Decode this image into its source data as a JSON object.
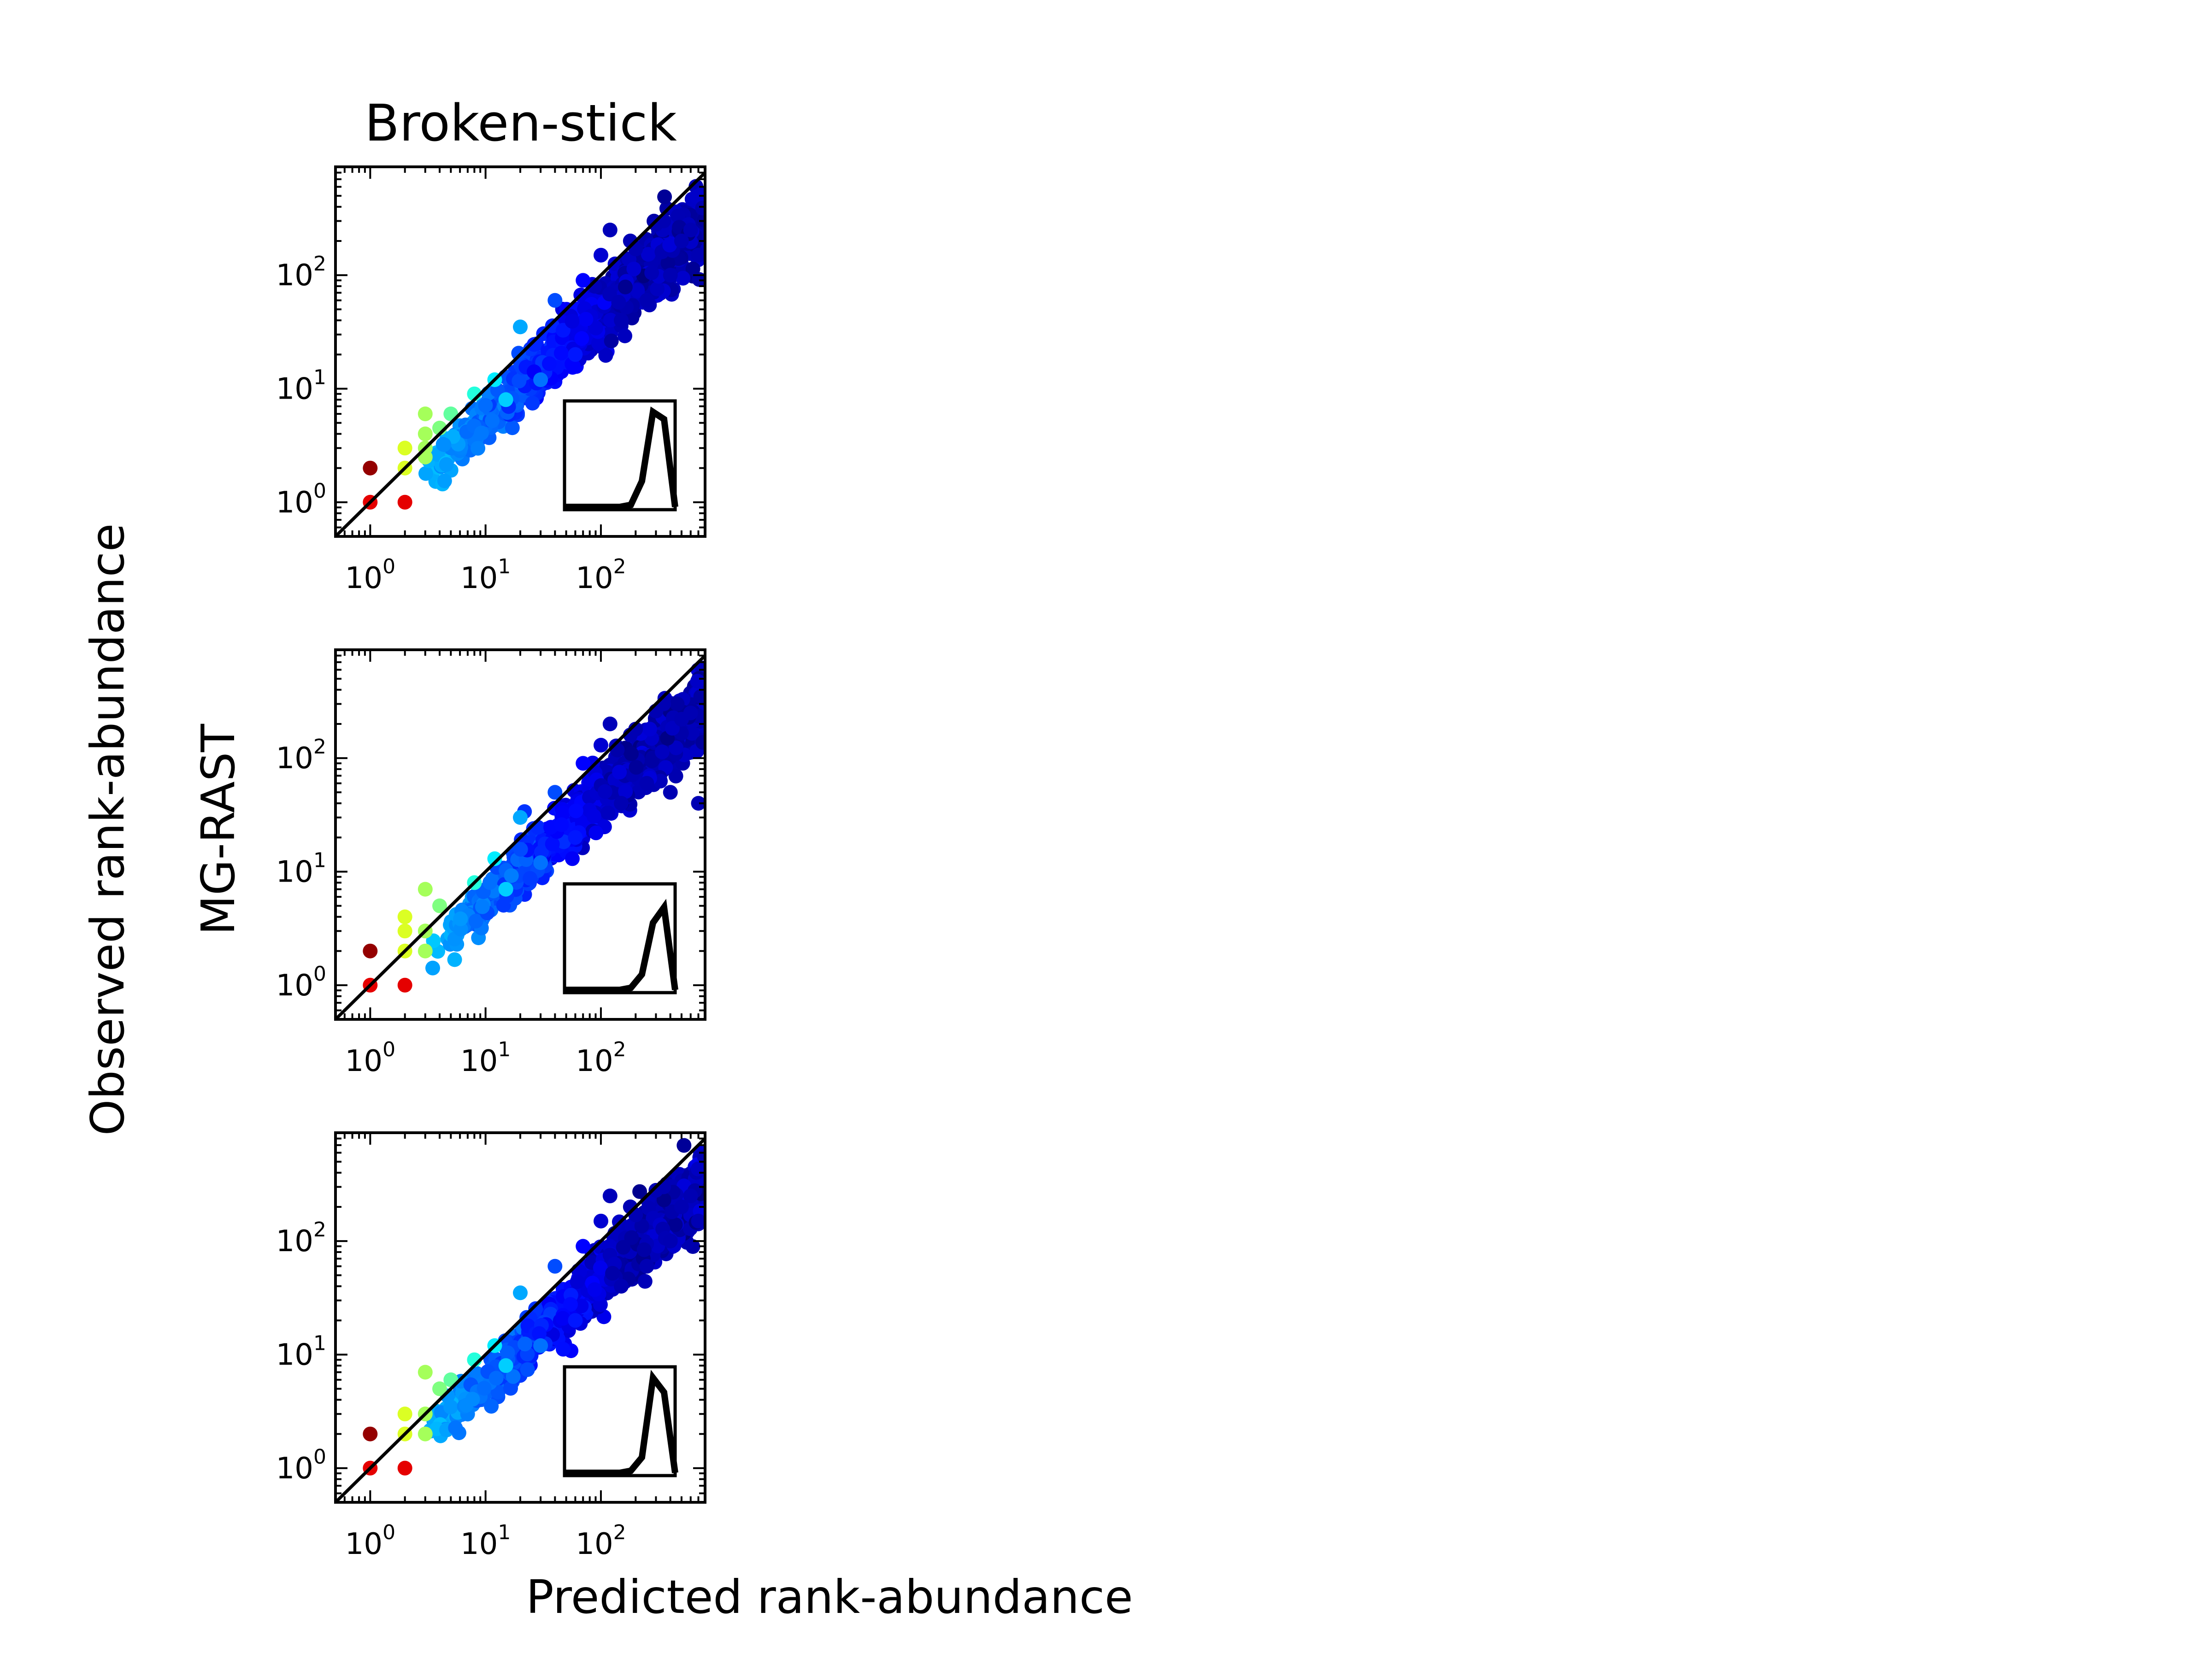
{
  "figure": {
    "title": "Broken-stick",
    "dataset_label": "MG-RAST",
    "xlabel": "Predicted rank-abundance",
    "ylabel": "Observed rank-abundance"
  },
  "colors": {
    "line": "#000000",
    "colormap": "jet"
  },
  "chart_data": [
    {
      "type": "scatter",
      "xscale": "log",
      "yscale": "log",
      "xlim": [
        0.5,
        800
      ],
      "ylim": [
        0.5,
        900
      ],
      "x_ticks": [
        1,
        10,
        100
      ],
      "y_ticks": [
        1,
        10,
        100
      ],
      "x_tick_labels": [
        {
          "base": "10",
          "exp": "0"
        },
        {
          "base": "10",
          "exp": "1"
        },
        {
          "base": "10",
          "exp": "2"
        }
      ],
      "y_tick_labels": [
        {
          "base": "10",
          "exp": "0"
        },
        {
          "base": "10",
          "exp": "1"
        },
        {
          "base": "10",
          "exp": "2"
        }
      ],
      "reference_line": "1:1",
      "color_by": "point density",
      "points": [
        [
          1,
          2
        ],
        [
          1,
          1
        ],
        [
          2,
          1
        ],
        [
          2,
          2
        ],
        [
          2,
          3
        ],
        [
          3,
          3
        ],
        [
          3,
          2.5
        ],
        [
          3,
          6
        ],
        [
          3,
          4
        ],
        [
          5,
          6
        ],
        [
          4,
          4.5
        ],
        [
          8,
          9
        ],
        [
          12,
          12
        ],
        [
          20,
          35
        ],
        [
          40,
          60
        ],
        [
          100,
          150
        ],
        [
          200,
          170
        ],
        [
          300,
          280
        ],
        [
          500,
          200
        ],
        [
          700,
          150
        ],
        [
          400,
          100
        ],
        [
          250,
          60
        ],
        [
          150,
          40
        ],
        [
          60,
          20
        ],
        [
          30,
          12
        ],
        [
          15,
          8
        ],
        [
          120,
          250
        ],
        [
          180,
          200
        ],
        [
          70,
          90
        ],
        [
          350,
          300
        ],
        [
          600,
          250
        ]
      ],
      "inset": {
        "type": "line",
        "x": [
          0,
          1,
          2,
          3,
          4,
          5,
          6,
          7,
          8,
          9,
          10
        ],
        "y": [
          0,
          0,
          0,
          0,
          0,
          0,
          0.02,
          0.25,
          0.92,
          0.85,
          0
        ]
      }
    },
    {
      "type": "scatter",
      "xscale": "log",
      "yscale": "log",
      "xlim": [
        0.5,
        800
      ],
      "ylim": [
        0.5,
        900
      ],
      "x_ticks": [
        1,
        10,
        100
      ],
      "y_ticks": [
        1,
        10,
        100
      ],
      "x_tick_labels": [
        {
          "base": "10",
          "exp": "0"
        },
        {
          "base": "10",
          "exp": "1"
        },
        {
          "base": "10",
          "exp": "2"
        }
      ],
      "y_tick_labels": [
        {
          "base": "10",
          "exp": "0"
        },
        {
          "base": "10",
          "exp": "1"
        },
        {
          "base": "10",
          "exp": "2"
        }
      ],
      "reference_line": "1:1",
      "color_by": "point density",
      "points": [
        [
          1,
          2
        ],
        [
          1,
          1
        ],
        [
          2,
          1
        ],
        [
          2,
          2
        ],
        [
          2,
          3
        ],
        [
          2,
          4
        ],
        [
          3,
          3
        ],
        [
          3,
          2
        ],
        [
          3,
          7
        ],
        [
          4,
          5
        ],
        [
          8,
          8
        ],
        [
          12,
          13
        ],
        [
          20,
          30
        ],
        [
          40,
          50
        ],
        [
          100,
          130
        ],
        [
          200,
          180
        ],
        [
          300,
          260
        ],
        [
          500,
          220
        ],
        [
          700,
          40
        ],
        [
          400,
          50
        ],
        [
          250,
          60
        ],
        [
          150,
          40
        ],
        [
          60,
          20
        ],
        [
          30,
          12
        ],
        [
          15,
          7
        ],
        [
          120,
          200
        ],
        [
          180,
          160
        ],
        [
          70,
          90
        ],
        [
          350,
          300
        ],
        [
          600,
          250
        ]
      ],
      "inset": {
        "type": "line",
        "x": [
          0,
          1,
          2,
          3,
          4,
          5,
          6,
          7,
          8,
          9,
          10
        ],
        "y": [
          0,
          0,
          0,
          0,
          0,
          0,
          0.02,
          0.15,
          0.65,
          0.8,
          0
        ]
      }
    },
    {
      "type": "scatter",
      "xscale": "log",
      "yscale": "log",
      "xlim": [
        0.5,
        800
      ],
      "ylim": [
        0.5,
        900
      ],
      "x_ticks": [
        1,
        10,
        100
      ],
      "y_ticks": [
        1,
        10,
        100
      ],
      "x_tick_labels": [
        {
          "base": "10",
          "exp": "0"
        },
        {
          "base": "10",
          "exp": "1"
        },
        {
          "base": "10",
          "exp": "2"
        }
      ],
      "y_tick_labels": [
        {
          "base": "10",
          "exp": "0"
        },
        {
          "base": "10",
          "exp": "1"
        },
        {
          "base": "10",
          "exp": "2"
        }
      ],
      "reference_line": "1:1",
      "color_by": "point density",
      "points": [
        [
          1,
          2
        ],
        [
          1,
          1
        ],
        [
          2,
          1
        ],
        [
          2,
          2
        ],
        [
          2,
          3
        ],
        [
          3,
          3
        ],
        [
          3,
          2
        ],
        [
          3,
          7
        ],
        [
          4,
          5
        ],
        [
          5,
          6
        ],
        [
          8,
          9
        ],
        [
          12,
          12
        ],
        [
          20,
          35
        ],
        [
          40,
          60
        ],
        [
          100,
          150
        ],
        [
          200,
          170
        ],
        [
          300,
          280
        ],
        [
          500,
          200
        ],
        [
          700,
          150
        ],
        [
          400,
          100
        ],
        [
          250,
          60
        ],
        [
          150,
          40
        ],
        [
          60,
          20
        ],
        [
          30,
          12
        ],
        [
          15,
          8
        ],
        [
          120,
          250
        ],
        [
          180,
          200
        ],
        [
          70,
          90
        ],
        [
          350,
          300
        ],
        [
          600,
          250
        ]
      ],
      "inset": {
        "type": "line",
        "x": [
          0,
          1,
          2,
          3,
          4,
          5,
          6,
          7,
          8,
          9,
          10
        ],
        "y": [
          0,
          0,
          0,
          0,
          0,
          0,
          0.02,
          0.15,
          0.92,
          0.78,
          0
        ]
      }
    }
  ]
}
